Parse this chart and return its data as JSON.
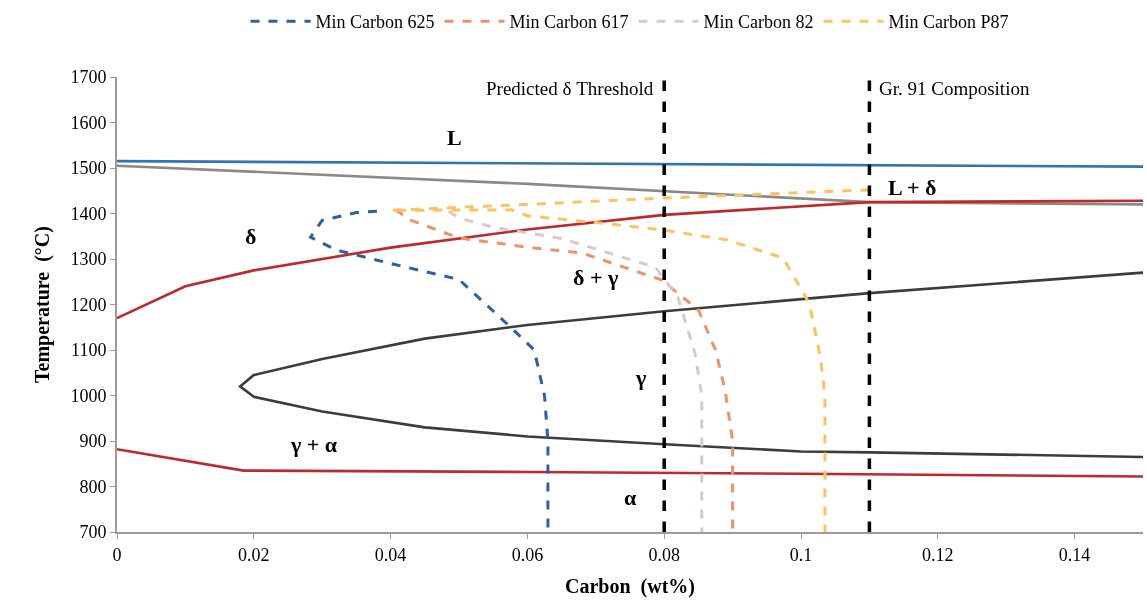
{
  "chart_data": {
    "type": "line",
    "xlabel": "Carbon  (wt%)",
    "ylabel": "Temperature  (°C)",
    "xlim": [
      0,
      0.15
    ],
    "xticks": [
      0,
      0.02,
      0.04,
      0.06,
      0.08,
      {
        "value": 0.1,
        "label": "0.1"
      },
      0.12,
      0.14
    ],
    "ylim": [
      700,
      1700
    ],
    "yticks": [
      700,
      800,
      900,
      1000,
      1100,
      1200,
      1300,
      1400,
      1500,
      1600,
      1700
    ],
    "legend": "top",
    "marker": "none",
    "series": [
      {
        "color": "#2e75b6",
        "line_style": "solid",
        "x": [
          0,
          0.15
        ],
        "values": [
          1515,
          1503
        ]
      },
      {
        "color": "#8c8886",
        "line_style": "solid",
        "x": [
          0,
          0.06,
          0.11,
          0.15
        ],
        "values": [
          1505,
          1465,
          1425,
          1420
        ]
      },
      {
        "color": "#c0282a",
        "line_style": "solid",
        "x": [
          0,
          0.01,
          0.02,
          0.04,
          0.06,
          0.08,
          0.11,
          0.15
        ],
        "values": [
          1170,
          1240,
          1275,
          1325,
          1365,
          1397,
          1425,
          1428
        ]
      },
      {
        "color": "#3c3c3a",
        "line_style": "solid",
        "x": [
          0.15,
          0.11,
          0.08,
          0.06,
          0.045,
          0.03,
          0.02,
          0.018,
          0.02,
          0.03,
          0.045,
          0.06,
          0.08,
          0.1,
          0.11,
          0.15
        ],
        "values": [
          1270,
          1225,
          1185,
          1155,
          1125,
          1080,
          1045,
          1020,
          997,
          965,
          930,
          910,
          893,
          877,
          875,
          865
        ]
      },
      {
        "color": "#c0282a",
        "line_style": "solid",
        "x": [
          0,
          0.0185,
          0.06,
          0.1,
          0.15
        ],
        "values": [
          882,
          835,
          832,
          828,
          822
        ]
      },
      {
        "name": "Min Carbon 625",
        "color": "#2f5ea8",
        "line_style": "dashed",
        "x": [
          0.038,
          0.035,
          0.03,
          0.0283,
          0.032,
          0.04,
          0.05,
          0.0572,
          0.061,
          0.0625,
          0.063,
          0.063
        ],
        "values": [
          1405,
          1402,
          1385,
          1348,
          1320,
          1290,
          1255,
          1155,
          1100,
          1000,
          900,
          700
        ]
      },
      {
        "name": "Min Carbon 617",
        "color": "#ef9265",
        "line_style": "dashed",
        "x": [
          0.0407,
          0.043,
          0.05,
          0.06,
          0.068,
          0.0796,
          0.085,
          0.0875,
          0.0889,
          0.09,
          0.09
        ],
        "values": [
          1408,
          1385,
          1346,
          1326,
          1313,
          1254,
          1188,
          1100,
          1012,
          900,
          700
        ]
      },
      {
        "name": "Min Carbon 82",
        "color": "#d8cbc4",
        "line_style": "dashed",
        "x": [
          0.0485,
          0.05,
          0.055,
          0.065,
          0.0787,
          0.082,
          0.0845,
          0.0855,
          0.0855
        ],
        "values": [
          1405,
          1390,
          1370,
          1345,
          1282,
          1216,
          1093,
          1000,
          700
        ]
      },
      {
        "name": "Min Carbon P87",
        "color": "#fbc45e",
        "line_style": "dashed",
        "x": [
          0.11,
          0.08,
          0.06,
          0.04,
          0.0577,
          0.06,
          0.07,
          0.0797,
          0.0892,
          0.0974,
          0.1012,
          0.1028,
          0.1035,
          0.1035
        ],
        "values": [
          1452,
          1434,
          1420,
          1407,
          1408,
          1395,
          1380,
          1364,
          1342,
          1302,
          1203,
          1087,
          1000,
          700
        ]
      }
    ],
    "ref_lines": [
      {
        "axis": "x",
        "value": 0.08,
        "label": "Predicted δ Threshold",
        "color": "#000000",
        "line_style": "dashed"
      },
      {
        "axis": "x",
        "value": 0.11,
        "label": "Gr. 91 Composition",
        "color": "#000000",
        "line_style": "dashed"
      }
    ],
    "annotations": [
      "L",
      "δ",
      "L + δ",
      "δ + γ",
      "γ",
      "γ + α",
      "α"
    ]
  }
}
